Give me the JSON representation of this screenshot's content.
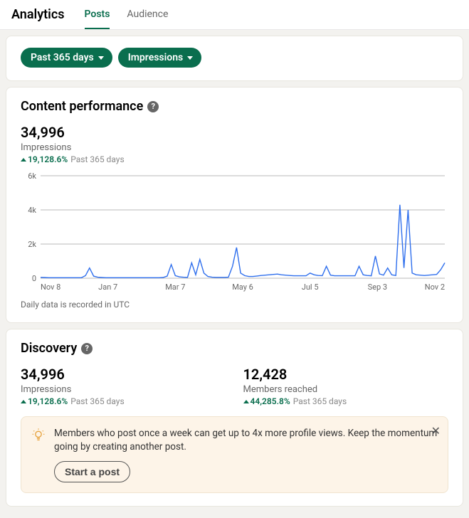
{
  "header": {
    "title": "Analytics",
    "tabs": [
      {
        "label": "Posts",
        "active": true
      },
      {
        "label": "Audience",
        "active": false
      }
    ]
  },
  "filters": {
    "date_range": "Past 365 days",
    "metric": "Impressions"
  },
  "content_performance": {
    "title": "Content performance",
    "metric": {
      "value": "34,996",
      "label": "Impressions",
      "change_pct": "19,128.6%",
      "change_period": "Past 365 days"
    },
    "chart": {
      "type": "line",
      "ylim": [
        0,
        6000
      ],
      "yticks": [
        0,
        2000,
        4000,
        6000
      ],
      "ytick_labels": [
        "0",
        "2k",
        "4k",
        "6k"
      ],
      "xtick_labels": [
        "Nov 8",
        "Jan 7",
        "Mar 7",
        "May 6",
        "Jul 5",
        "Sep 3",
        "Nov 2"
      ],
      "line_color": "#2f6fed",
      "grid_color": "#767676",
      "background_color": "#ffffff",
      "axis_label_color": "#666666",
      "axis_fontsize": 11,
      "series": [
        50,
        40,
        30,
        30,
        30,
        30,
        30,
        30,
        30,
        30,
        30,
        150,
        600,
        120,
        60,
        40,
        30,
        30,
        30,
        30,
        30,
        30,
        30,
        30,
        30,
        30,
        30,
        30,
        30,
        30,
        40,
        120,
        800,
        150,
        80,
        60,
        50,
        900,
        200,
        1100,
        300,
        100,
        60,
        50,
        50,
        50,
        60,
        700,
        1800,
        300,
        150,
        100,
        100,
        130,
        160,
        180,
        200,
        220,
        240,
        200,
        180,
        160,
        140,
        140,
        140,
        140,
        300,
        200,
        160,
        150,
        700,
        180,
        140,
        140,
        140,
        140,
        140,
        140,
        700,
        200,
        160,
        140,
        1300,
        250,
        180,
        600,
        200,
        160,
        4300,
        600,
        4000,
        300,
        200,
        180,
        160,
        180,
        200,
        220,
        500,
        900
      ]
    },
    "note": "Daily data is recorded in UTC"
  },
  "discovery": {
    "title": "Discovery",
    "metrics": [
      {
        "value": "34,996",
        "label": "Impressions",
        "change_pct": "19,128.6%",
        "change_period": "Past 365 days"
      },
      {
        "value": "12,428",
        "label": "Members reached",
        "change_pct": "44,285.8%",
        "change_period": "Past 365 days"
      }
    ],
    "banner": {
      "text": "Members who post once a week can get up to 4x more profile views. Keep the momentum going by creating another post.",
      "button_label": "Start a post"
    }
  }
}
